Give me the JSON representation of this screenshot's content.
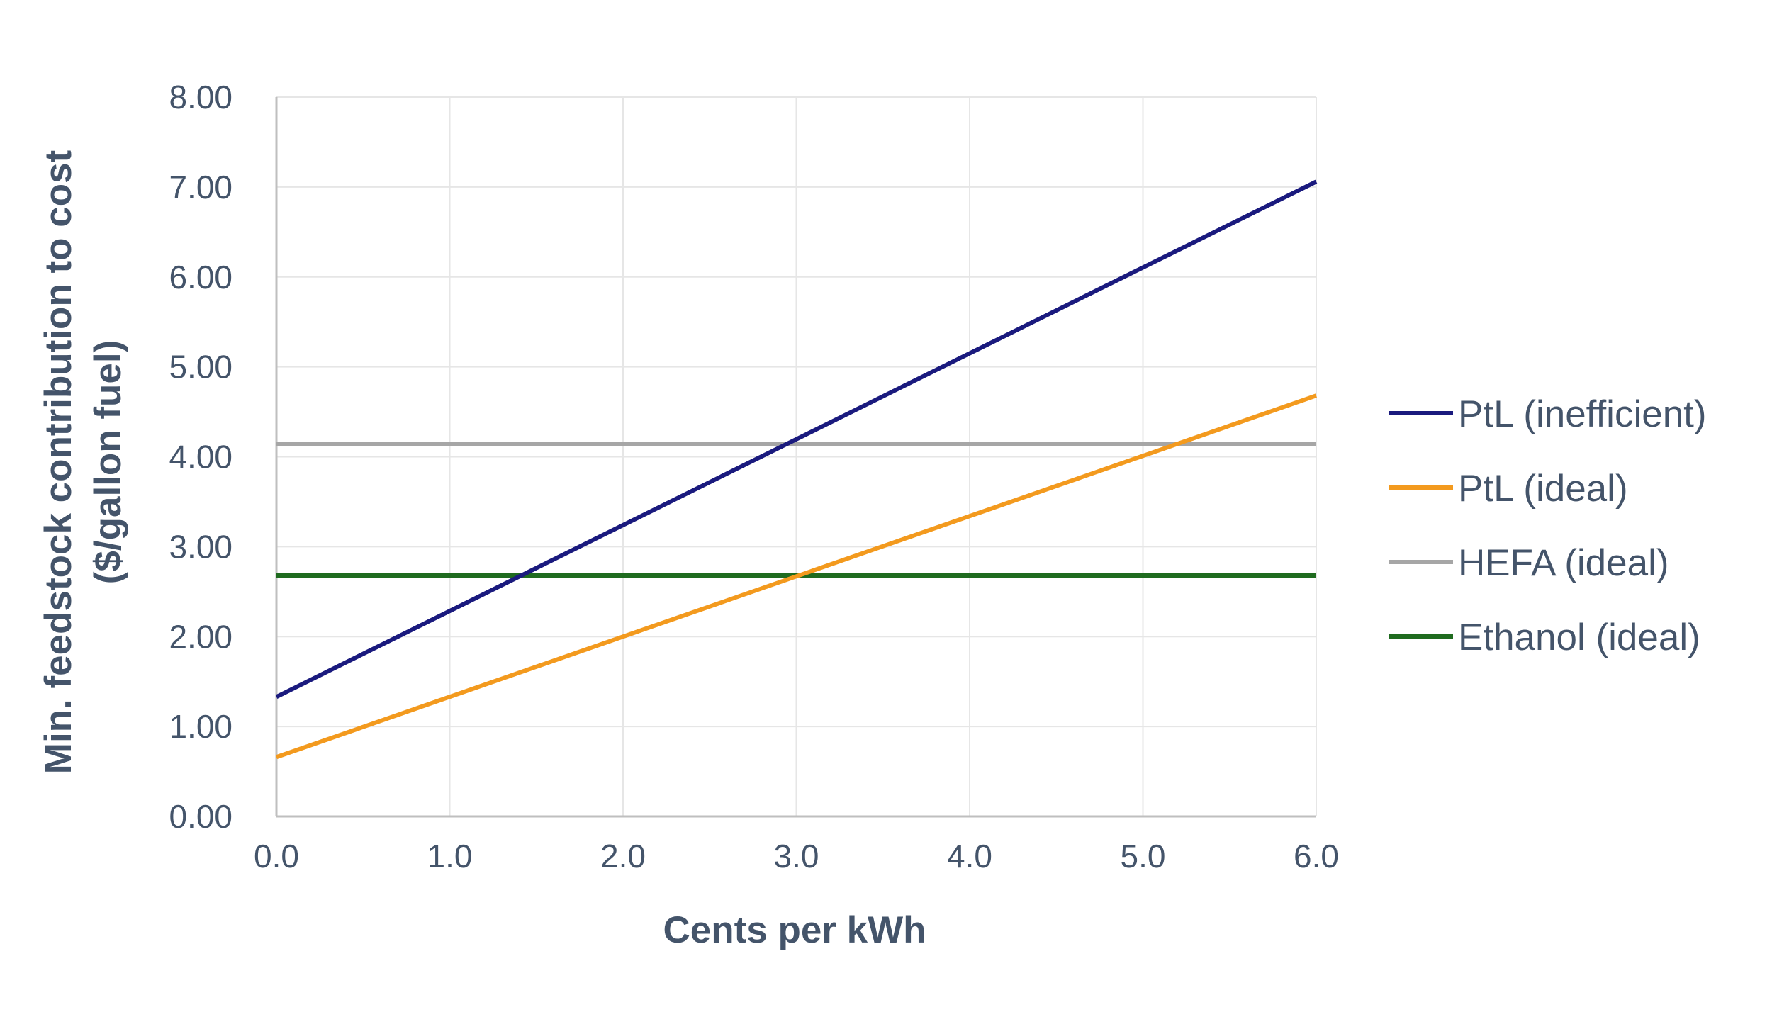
{
  "chart_data": {
    "type": "line",
    "title": "",
    "xlabel": "Cents per kWh",
    "ylabel_line1": "Min. feedstock contribution to cost",
    "ylabel_line2": "($/gallon fuel)",
    "xlim": [
      0,
      6
    ],
    "ylim": [
      0,
      8
    ],
    "x_ticks": [
      "0.0",
      "1.0",
      "2.0",
      "3.0",
      "4.0",
      "5.0",
      "6.0"
    ],
    "y_ticks": [
      "0.00",
      "1.00",
      "2.00",
      "3.00",
      "4.00",
      "5.00",
      "6.00",
      "7.00",
      "8.00"
    ],
    "grid": true,
    "legend_position": "right",
    "series": [
      {
        "name": "PtL (inefficient)",
        "color": "#1a1a7e",
        "x": [
          0,
          6
        ],
        "y": [
          1.33,
          7.06
        ]
      },
      {
        "name": "PtL (ideal)",
        "color": "#f39a1e",
        "x": [
          0,
          6
        ],
        "y": [
          0.66,
          4.68
        ]
      },
      {
        "name": "HEFA (ideal)",
        "color": "#a6a6a6",
        "x": [
          0,
          6
        ],
        "y": [
          4.14,
          4.14
        ]
      },
      {
        "name": "Ethanol (ideal)",
        "color": "#1f6b1f",
        "x": [
          0,
          6
        ],
        "y": [
          2.68,
          2.68
        ]
      }
    ]
  }
}
